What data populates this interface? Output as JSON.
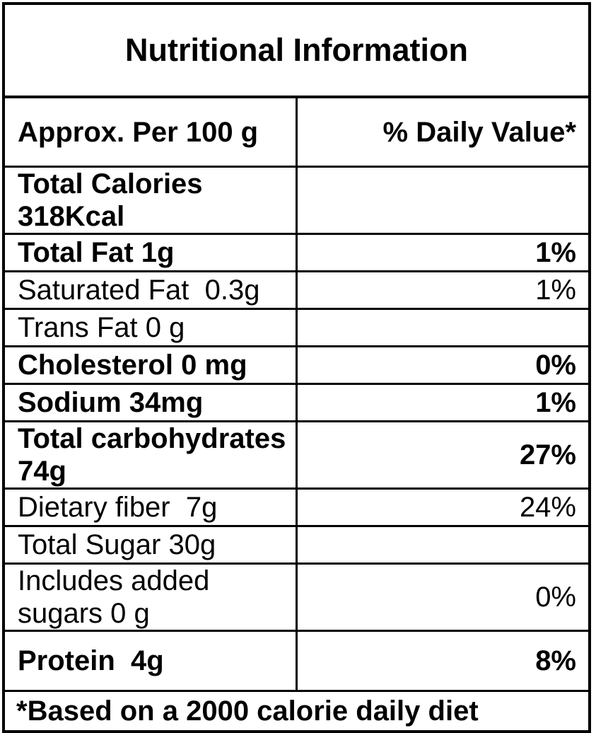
{
  "title": "Nutritional Information",
  "columns": {
    "label_header": "Approx. Per 100 g",
    "value_header": "% Daily Value*"
  },
  "rows": [
    {
      "label": "Total Calories 318Kcal",
      "value": "",
      "bold": true
    },
    {
      "label": "Total Fat 1g",
      "value": "1%",
      "bold": true
    },
    {
      "label": "Saturated Fat  0.3g",
      "value": "1%",
      "bold": false
    },
    {
      "label": "Trans Fat 0 g",
      "value": "",
      "bold": false
    },
    {
      "label": "Cholesterol 0 mg",
      "value": "0%",
      "bold": true
    },
    {
      "label": "Sodium 34mg",
      "value": "1%",
      "bold": true
    },
    {
      "label": "Total carbohydrates  74g",
      "value": "27%",
      "bold": true
    },
    {
      "label": "Dietary fiber  7g",
      "value": "24%",
      "bold": false
    },
    {
      "label": "Total Sugar 30g",
      "value": "",
      "bold": false
    },
    {
      "label": "Includes added sugars 0 g",
      "value": "0%",
      "bold": false
    },
    {
      "label": "Protein  4g",
      "value": "8%",
      "bold": true
    }
  ],
  "footnote": "*Based on a 2000 calorie daily diet",
  "colors": {
    "border": "#000000",
    "text": "#000000",
    "background": "#ffffff"
  }
}
